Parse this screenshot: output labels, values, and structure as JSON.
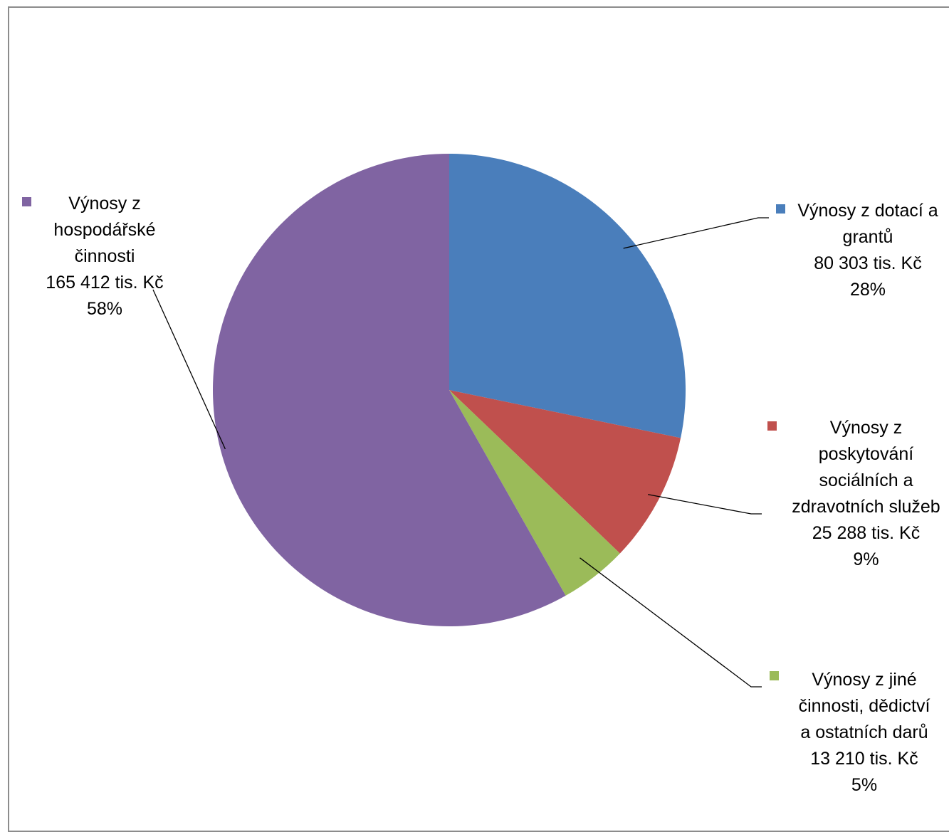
{
  "chart_data": {
    "type": "pie",
    "title": "",
    "unit": "tis. Kč",
    "start_angle_deg": 0,
    "direction": "clockwise",
    "slices": [
      {
        "label_lines": [
          "Výnosy z dotací a",
          "grantů"
        ],
        "value": 80303,
        "value_text": "80 303 tis. Kč",
        "percent": 28,
        "percent_text": "28%",
        "color": "#4A7EBB"
      },
      {
        "label_lines": [
          "Výnosy z",
          "poskytování",
          "sociálních a",
          "zdravotních služeb"
        ],
        "value": 25288,
        "value_text": "25 288 tis. Kč",
        "percent": 9,
        "percent_text": "9%",
        "color": "#C0504D"
      },
      {
        "label_lines": [
          "Výnosy z jiné",
          "činnosti, dědictví",
          "a ostatních darů"
        ],
        "value": 13210,
        "value_text": "13 210 tis. Kč",
        "percent": 5,
        "percent_text": "5%",
        "color": "#9BBB59"
      },
      {
        "label_lines": [
          "Výnosy z",
          "hospodářské",
          "činnosti"
        ],
        "value": 165412,
        "value_text": "165 412 tis. Kč",
        "percent": 58,
        "percent_text": "58%",
        "color": "#8064A2"
      }
    ]
  }
}
